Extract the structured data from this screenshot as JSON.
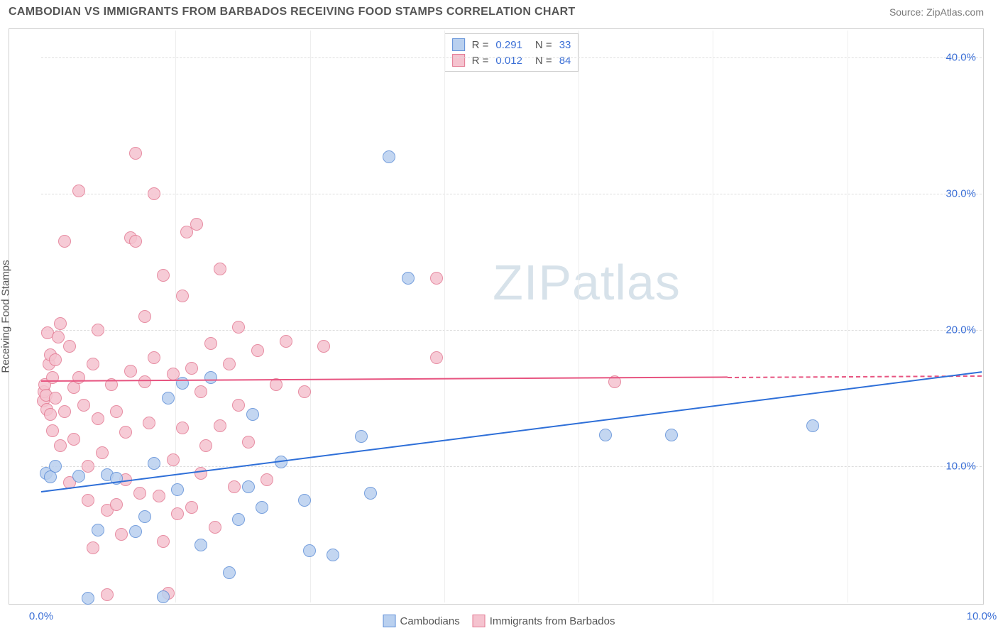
{
  "header": {
    "title": "CAMBODIAN VS IMMIGRANTS FROM BARBADOS RECEIVING FOOD STAMPS CORRELATION CHART",
    "source": "Source: ZipAtlas.com"
  },
  "axes": {
    "ylabel": "Receiving Food Stamps",
    "xlim": [
      0,
      10
    ],
    "ylim": [
      0,
      42
    ],
    "yticks": [
      {
        "v": 10,
        "label": "10.0%"
      },
      {
        "v": 20,
        "label": "20.0%"
      },
      {
        "v": 30,
        "label": "30.0%"
      },
      {
        "v": 40,
        "label": "40.0%"
      }
    ],
    "xticks": [
      {
        "v": 0,
        "label": "0.0%"
      },
      {
        "v": 10,
        "label": "10.0%"
      }
    ],
    "xgrid_minor": [
      1.43,
      2.86,
      4.29,
      5.71,
      7.14,
      8.57
    ],
    "grid_color": "#dddddd",
    "tick_font_color": "#3b6fd6"
  },
  "watermark": {
    "text_bold": "ZIP",
    "text_light": "atlas",
    "color": "#d7e2ea"
  },
  "series": {
    "a": {
      "name": "Cambodians",
      "fill": "#b9d0ef",
      "stroke": "#5f8fd8",
      "line": "#2e6fd8",
      "r": 0.291,
      "n": 33,
      "marker_radius": 9,
      "trend": {
        "x1": 0,
        "y1": 8.2,
        "x2": 10,
        "y2": 17.0,
        "dash_after_x": null
      },
      "points": [
        {
          "x": 0.05,
          "y": 9.5
        },
        {
          "x": 0.1,
          "y": 9.2
        },
        {
          "x": 0.15,
          "y": 10.0
        },
        {
          "x": 0.4,
          "y": 9.3
        },
        {
          "x": 0.6,
          "y": 5.3
        },
        {
          "x": 0.7,
          "y": 9.4
        },
        {
          "x": 0.8,
          "y": 9.1
        },
        {
          "x": 1.0,
          "y": 5.2
        },
        {
          "x": 1.1,
          "y": 6.3
        },
        {
          "x": 1.2,
          "y": 10.2
        },
        {
          "x": 1.3,
          "y": 0.4
        },
        {
          "x": 1.35,
          "y": 15.0
        },
        {
          "x": 1.5,
          "y": 16.1
        },
        {
          "x": 1.45,
          "y": 8.3
        },
        {
          "x": 1.7,
          "y": 4.2
        },
        {
          "x": 1.8,
          "y": 16.5
        },
        {
          "x": 2.0,
          "y": 2.2
        },
        {
          "x": 2.1,
          "y": 6.1
        },
        {
          "x": 2.2,
          "y": 8.5
        },
        {
          "x": 2.25,
          "y": 13.8
        },
        {
          "x": 2.35,
          "y": 7.0
        },
        {
          "x": 2.55,
          "y": 10.3
        },
        {
          "x": 2.8,
          "y": 7.5
        },
        {
          "x": 2.85,
          "y": 3.8
        },
        {
          "x": 3.1,
          "y": 3.5
        },
        {
          "x": 3.4,
          "y": 12.2
        },
        {
          "x": 3.5,
          "y": 8.0
        },
        {
          "x": 3.7,
          "y": 32.7
        },
        {
          "x": 3.9,
          "y": 23.8
        },
        {
          "x": 6.0,
          "y": 12.3
        },
        {
          "x": 6.7,
          "y": 12.3
        },
        {
          "x": 8.2,
          "y": 13.0
        },
        {
          "x": 0.5,
          "y": 0.3
        }
      ]
    },
    "b": {
      "name": "Immigrants from Barbados",
      "fill": "#f5c3cf",
      "stroke": "#e37a93",
      "line": "#e75480",
      "r": 0.012,
      "n": 84,
      "marker_radius": 9,
      "trend": {
        "x1": 0,
        "y1": 16.3,
        "x2": 10,
        "y2": 16.7,
        "dash_after_x": 7.3
      },
      "points": [
        {
          "x": 0.02,
          "y": 14.8
        },
        {
          "x": 0.03,
          "y": 15.5
        },
        {
          "x": 0.04,
          "y": 16.0
        },
        {
          "x": 0.05,
          "y": 15.2
        },
        {
          "x": 0.06,
          "y": 14.2
        },
        {
          "x": 0.07,
          "y": 19.8
        },
        {
          "x": 0.08,
          "y": 17.5
        },
        {
          "x": 0.1,
          "y": 18.2
        },
        {
          "x": 0.1,
          "y": 13.8
        },
        {
          "x": 0.12,
          "y": 12.6
        },
        {
          "x": 0.12,
          "y": 16.5
        },
        {
          "x": 0.15,
          "y": 15.0
        },
        {
          "x": 0.15,
          "y": 17.8
        },
        {
          "x": 0.18,
          "y": 19.5
        },
        {
          "x": 0.2,
          "y": 11.5
        },
        {
          "x": 0.2,
          "y": 20.5
        },
        {
          "x": 0.25,
          "y": 26.5
        },
        {
          "x": 0.25,
          "y": 14.0
        },
        {
          "x": 0.3,
          "y": 8.8
        },
        {
          "x": 0.3,
          "y": 18.8
        },
        {
          "x": 0.35,
          "y": 15.8
        },
        {
          "x": 0.35,
          "y": 12.0
        },
        {
          "x": 0.4,
          "y": 16.5
        },
        {
          "x": 0.4,
          "y": 30.2
        },
        {
          "x": 0.45,
          "y": 14.5
        },
        {
          "x": 0.5,
          "y": 10.0
        },
        {
          "x": 0.5,
          "y": 7.5
        },
        {
          "x": 0.55,
          "y": 17.5
        },
        {
          "x": 0.55,
          "y": 4.0
        },
        {
          "x": 0.6,
          "y": 20.0
        },
        {
          "x": 0.6,
          "y": 13.5
        },
        {
          "x": 0.65,
          "y": 11.0
        },
        {
          "x": 0.7,
          "y": 0.6
        },
        {
          "x": 0.7,
          "y": 6.8
        },
        {
          "x": 0.75,
          "y": 16.0
        },
        {
          "x": 0.8,
          "y": 7.2
        },
        {
          "x": 0.8,
          "y": 14.0
        },
        {
          "x": 0.85,
          "y": 5.0
        },
        {
          "x": 0.9,
          "y": 9.0
        },
        {
          "x": 0.9,
          "y": 12.5
        },
        {
          "x": 0.95,
          "y": 26.8
        },
        {
          "x": 0.95,
          "y": 17.0
        },
        {
          "x": 1.0,
          "y": 33.0
        },
        {
          "x": 1.0,
          "y": 26.5
        },
        {
          "x": 1.05,
          "y": 8.0
        },
        {
          "x": 1.1,
          "y": 16.2
        },
        {
          "x": 1.1,
          "y": 21.0
        },
        {
          "x": 1.15,
          "y": 13.2
        },
        {
          "x": 1.2,
          "y": 30.0
        },
        {
          "x": 1.2,
          "y": 18.0
        },
        {
          "x": 1.25,
          "y": 7.8
        },
        {
          "x": 1.3,
          "y": 24.0
        },
        {
          "x": 1.3,
          "y": 4.5
        },
        {
          "x": 1.35,
          "y": 0.7
        },
        {
          "x": 1.4,
          "y": 16.8
        },
        {
          "x": 1.4,
          "y": 10.5
        },
        {
          "x": 1.45,
          "y": 6.5
        },
        {
          "x": 1.5,
          "y": 22.5
        },
        {
          "x": 1.5,
          "y": 12.8
        },
        {
          "x": 1.55,
          "y": 27.2
        },
        {
          "x": 1.6,
          "y": 7.0
        },
        {
          "x": 1.6,
          "y": 17.2
        },
        {
          "x": 1.65,
          "y": 27.8
        },
        {
          "x": 1.7,
          "y": 9.5
        },
        {
          "x": 1.7,
          "y": 15.5
        },
        {
          "x": 1.75,
          "y": 11.5
        },
        {
          "x": 1.8,
          "y": 19.0
        },
        {
          "x": 1.85,
          "y": 5.5
        },
        {
          "x": 1.9,
          "y": 13.0
        },
        {
          "x": 1.9,
          "y": 24.5
        },
        {
          "x": 2.0,
          "y": 17.5
        },
        {
          "x": 2.05,
          "y": 8.5
        },
        {
          "x": 2.1,
          "y": 14.5
        },
        {
          "x": 2.1,
          "y": 20.2
        },
        {
          "x": 2.2,
          "y": 11.8
        },
        {
          "x": 2.3,
          "y": 18.5
        },
        {
          "x": 2.4,
          "y": 9.0
        },
        {
          "x": 2.5,
          "y": 16.0
        },
        {
          "x": 2.6,
          "y": 19.2
        },
        {
          "x": 2.8,
          "y": 15.5
        },
        {
          "x": 3.0,
          "y": 18.8
        },
        {
          "x": 4.2,
          "y": 23.8
        },
        {
          "x": 4.2,
          "y": 18.0
        },
        {
          "x": 6.1,
          "y": 16.2
        }
      ]
    }
  },
  "legend_top": {
    "r_label": "R =",
    "n_label": "N ="
  },
  "legend_bottom": {
    "items": [
      "a",
      "b"
    ]
  }
}
